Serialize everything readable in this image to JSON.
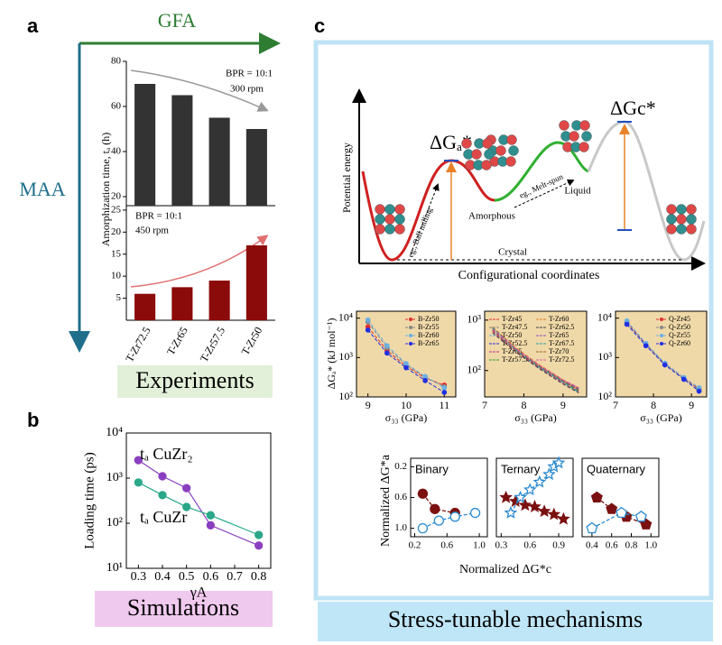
{
  "panel_labels": [
    "a",
    "b",
    "c"
  ],
  "arrows": {
    "x": "GFA",
    "y": "MAA"
  },
  "banners": [
    "Experiments",
    "Simulations",
    "Stress-tunable mechanisms"
  ],
  "diagram": {
    "ylabel": "Potential energy",
    "xlabel": "Configurational coordinates",
    "barrier_a": "ΔGₐ*",
    "barrier_c": "ΔGc*",
    "states": [
      "Amorphous",
      "Liquid",
      "Crystal"
    ],
    "routes": [
      "eg., Ball milling",
      "eg., Melt-spun"
    ]
  },
  "scatter_axes": {
    "xlabel": "Normalized ΔG*c",
    "ylabel": "Normalized ΔG*a"
  },
  "chart_data": [
    {
      "type": "bar",
      "ylabel": "Amorphization time, tₐ (h)",
      "categories": [
        "T-Zr72.5",
        "T-Zr65",
        "T-Zr57.5",
        "T-Zr50"
      ],
      "panels": [
        {
          "values": [
            70,
            65,
            55,
            50
          ],
          "color": "#333333",
          "ylim": [
            16,
            80
          ],
          "yticks": [
            20,
            40,
            60,
            80
          ],
          "annotations": [
            "BPR = 10:1",
            "300 rpm"
          ]
        },
        {
          "values": [
            6,
            7.5,
            9,
            17
          ],
          "color": "#8b0a0a",
          "ylim": [
            0,
            26
          ],
          "yticks": [
            5,
            10,
            15,
            20,
            25
          ],
          "annotations": [
            "BPR = 10:1",
            "450 rpm"
          ]
        }
      ]
    },
    {
      "type": "line",
      "xlabel": "γA",
      "ylabel": "Loading time (ps)",
      "ylog": true,
      "x": [
        0.3,
        0.4,
        0.5,
        0.6,
        0.8
      ],
      "xlim": [
        0.25,
        0.85
      ],
      "xticks": [
        0.3,
        0.4,
        0.5,
        0.6,
        0.7,
        0.8
      ],
      "ylim": [
        10,
        10000
      ],
      "yticks": [
        {
          "value": 10,
          "label": "10¹"
        },
        {
          "value": 100,
          "label": "10²"
        },
        {
          "value": 1000,
          "label": "10³"
        },
        {
          "value": 10000,
          "label": "10⁴"
        }
      ],
      "line_style": "solid",
      "series": [
        {
          "name": "tₐ CuZr₂",
          "color": "#8a3fc0",
          "marker": "circle",
          "filled": true,
          "values": [
            2500,
            1100,
            600,
            90,
            32
          ]
        },
        {
          "name": "tₐ CuZr",
          "color": "#2aa889",
          "marker": "circle",
          "filled": true,
          "values": [
            800,
            420,
            230,
            150,
            55
          ]
        }
      ]
    },
    {
      "type": "line",
      "background": "#f0d9a8",
      "ylog": true,
      "ylabel": "ΔGₐ* (kJ mol⁻¹)",
      "xlabel": "σ₃₃ (GPa)",
      "x": [
        9,
        9.5,
        10,
        10.5,
        11
      ],
      "xlim": [
        8.7,
        11.3
      ],
      "xticks": [
        9,
        10,
        11
      ],
      "ylim": [
        100,
        15000
      ],
      "yticks": [
        {
          "value": 100,
          "label": "10²"
        },
        {
          "value": 1000,
          "label": "10³"
        },
        {
          "value": 10000,
          "label": "10⁴"
        }
      ],
      "line_style": "dashed",
      "legend_corner": "upper-right",
      "series": [
        {
          "name": "B-Zr50",
          "color": "#e03030",
          "marker": "circle",
          "filled": true,
          "values": [
            6000,
            1500,
            600,
            300,
            200
          ]
        },
        {
          "name": "B-Zr55",
          "color": "#888888",
          "marker": "circle",
          "filled": true,
          "values": [
            8000,
            1800,
            650,
            320,
            180
          ]
        },
        {
          "name": "B-Zr60",
          "color": "#6ab0e0",
          "marker": "circle",
          "filled": true,
          "values": [
            9000,
            2000,
            700,
            330,
            170
          ]
        },
        {
          "name": "B-Zr65",
          "color": "#2030e0",
          "marker": "circle",
          "filled": true,
          "values": [
            5000,
            1300,
            550,
            260,
            130
          ]
        }
      ]
    },
    {
      "type": "line",
      "background": "#f0d9a8",
      "ylog": true,
      "xlabel": "σ₃₃ (GPa)",
      "x": [
        7.2,
        7.8,
        8.4,
        9.0,
        9.4
      ],
      "xlim": [
        7,
        9.6
      ],
      "xticks": [
        7,
        8,
        9
      ],
      "ylim": [
        30,
        1500
      ],
      "yticks": [
        {
          "value": 100,
          "label": "10²"
        },
        {
          "value": 1000,
          "label": "10³"
        }
      ],
      "line_style": "dashed",
      "legend_corner": "upper-right",
      "legend_columns": 2,
      "series": [
        {
          "name": "T-Zr45",
          "color": "#e03030",
          "values": [
            720,
            270,
            125,
            62,
            42
          ]
        },
        {
          "name": "T-Zr47.5",
          "color": "#888888",
          "values": [
            690,
            255,
            118,
            58,
            39
          ]
        },
        {
          "name": "T-Zr50",
          "color": "#6ab0e0",
          "values": [
            650,
            250,
            115,
            60,
            41
          ]
        },
        {
          "name": "T-Zr52.5",
          "color": "#2030e0",
          "values": [
            700,
            265,
            122,
            64,
            44
          ]
        },
        {
          "name": "T-Zr55",
          "color": "#c03090",
          "values": [
            600,
            240,
            112,
            57,
            38
          ]
        },
        {
          "name": "T-Zr57.5",
          "color": "#30a030",
          "values": [
            680,
            258,
            120,
            61,
            40
          ]
        },
        {
          "name": "T-Zr60",
          "color": "#e08030",
          "values": [
            740,
            280,
            130,
            66,
            45
          ]
        },
        {
          "name": "T-Zr62.5",
          "color": "#404040",
          "values": [
            560,
            230,
            108,
            54,
            36
          ]
        },
        {
          "name": "T-Zr65",
          "color": "#9050c0",
          "values": [
            660,
            262,
            124,
            63,
            43
          ]
        },
        {
          "name": "T-Zr67.5",
          "color": "#20a0a0",
          "values": [
            710,
            250,
            116,
            59,
            37
          ]
        },
        {
          "name": "T-Zr70",
          "color": "#a06030",
          "values": [
            630,
            245,
            119,
            62,
            41
          ]
        },
        {
          "name": "T-Zr72.5",
          "color": "#e060a0",
          "values": [
            670,
            268,
            126,
            65,
            46
          ]
        }
      ]
    },
    {
      "type": "line",
      "background": "#f0d9a8",
      "ylog": true,
      "xlabel": "σ₃₃ (GPa)",
      "x": [
        7.3,
        7.8,
        8.3,
        8.8,
        9.2
      ],
      "xlim": [
        7,
        9.4
      ],
      "xticks": [
        7,
        8,
        9
      ],
      "ylim": [
        100,
        15000
      ],
      "yticks": [
        {
          "value": 100,
          "label": "10²"
        },
        {
          "value": 1000,
          "label": "10³"
        },
        {
          "value": 10000,
          "label": "10⁴"
        }
      ],
      "line_style": "dashed",
      "legend_corner": "upper-right",
      "series": [
        {
          "name": "Q-Zr45",
          "color": "#e03030",
          "marker": "circle",
          "filled": true,
          "values": [
            8000,
            2200,
            700,
            300,
            160
          ]
        },
        {
          "name": "Q-Zr50",
          "color": "#888888",
          "marker": "circle",
          "filled": true,
          "values": [
            7500,
            2100,
            680,
            290,
            150
          ]
        },
        {
          "name": "Q-Zr55",
          "color": "#6ab0e0",
          "marker": "circle",
          "filled": true,
          "values": [
            8500,
            2300,
            720,
            310,
            170
          ]
        },
        {
          "name": "Q-Zr60",
          "color": "#2030e0",
          "marker": "circle",
          "filled": true,
          "values": [
            7000,
            2000,
            650,
            280,
            140
          ]
        }
      ]
    },
    {
      "type": "scatter",
      "title": "Binary",
      "y_inverted": true,
      "xlim": [
        0.15,
        1.1
      ],
      "xticks": [
        0.2,
        0.6,
        {
          "value": 1,
          "label": "1.0"
        }
      ],
      "ylim": [
        0.09,
        1.11
      ],
      "yticks": [
        0.2,
        0.6,
        {
          "value": 1,
          "label": "1.0"
        }
      ],
      "line_style": "dashed",
      "series": [
        {
          "color": "#7a1010",
          "marker": "circle",
          "filled": true,
          "x": [
            0.3,
            0.45,
            0.7
          ],
          "values": [
            0.55,
            0.75,
            0.8
          ]
        },
        {
          "color": "#2a8ad0",
          "marker": "circle",
          "filled": false,
          "x": [
            0.3,
            0.5,
            0.7,
            0.95
          ],
          "values": [
            1.0,
            0.9,
            0.85,
            0.8
          ]
        }
      ]
    },
    {
      "type": "scatter",
      "title": "Ternary",
      "y_inverted": true,
      "xlim": [
        0.25,
        1.05
      ],
      "xticks": [
        0.3,
        0.6,
        0.9
      ],
      "ylim": [
        0.09,
        1.11
      ],
      "line_style": "dashed",
      "series": [
        {
          "color": "#7a1010",
          "marker": "star",
          "filled": true,
          "x": [
            0.35,
            0.45,
            0.55,
            0.65,
            0.75,
            0.85,
            0.95
          ],
          "values": [
            0.6,
            0.65,
            0.7,
            0.72,
            0.78,
            0.82,
            0.88
          ]
        },
        {
          "color": "#2a8ad0",
          "marker": "star",
          "filled": false,
          "x": [
            0.4,
            0.5,
            0.6,
            0.7,
            0.8,
            0.85,
            0.9
          ],
          "values": [
            0.8,
            0.6,
            0.5,
            0.4,
            0.3,
            0.2,
            0.15
          ]
        }
      ]
    },
    {
      "type": "scatter",
      "title": "Quaternary",
      "y_inverted": true,
      "xlim": [
        0.3,
        1.08
      ],
      "xticks": [
        0.4,
        0.6,
        0.8,
        {
          "value": 1,
          "label": "1.0"
        }
      ],
      "ylim": [
        0.09,
        1.11
      ],
      "line_style": "dashed",
      "series": [
        {
          "color": "#7a1010",
          "marker": "pentagon",
          "filled": true,
          "x": [
            0.45,
            0.6,
            0.75,
            0.95
          ],
          "values": [
            0.6,
            0.75,
            0.85,
            0.95
          ]
        },
        {
          "color": "#2a8ad0",
          "marker": "pentagon",
          "filled": false,
          "x": [
            0.4,
            0.7,
            0.9
          ],
          "values": [
            1.0,
            0.8,
            0.85
          ]
        }
      ]
    }
  ]
}
